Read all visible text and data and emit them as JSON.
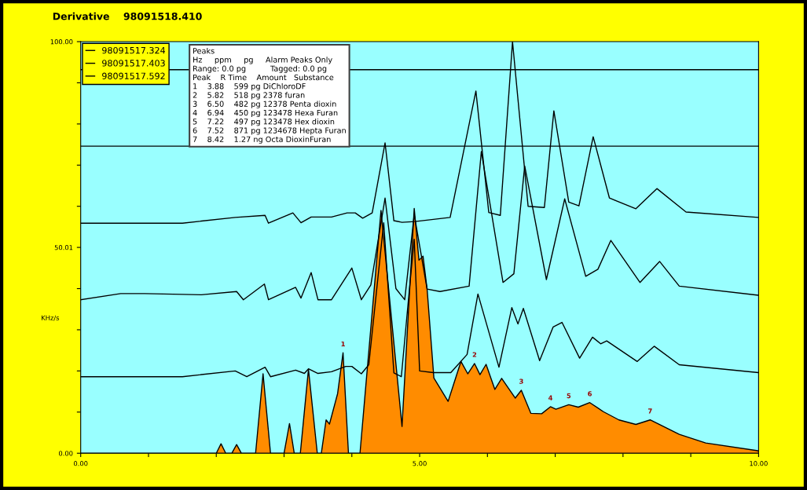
{
  "chart_data": {
    "type": "line",
    "title": "Derivative    98091518.410",
    "ylabel": "KHz/s",
    "xlim": [
      0,
      10
    ],
    "ylim": [
      0,
      100
    ],
    "xticks": [
      {
        "value": 0,
        "label": "0.00"
      },
      {
        "value": 1,
        "label": null
      },
      {
        "value": 2,
        "label": null
      },
      {
        "value": 3,
        "label": null
      },
      {
        "value": 4,
        "label": null
      },
      {
        "value": 5,
        "label": "5.00"
      },
      {
        "value": 6,
        "label": null
      },
      {
        "value": 7,
        "label": null
      },
      {
        "value": 8,
        "label": null
      },
      {
        "value": 9,
        "label": null
      },
      {
        "value": 10,
        "label": "10.00"
      }
    ],
    "yticks": [
      {
        "value": 0,
        "label": "0.00"
      },
      {
        "value": 10,
        "label": null
      },
      {
        "value": 20,
        "label": null
      },
      {
        "value": 30,
        "label": null
      },
      {
        "value": 40,
        "label": null
      },
      {
        "value": 50.01,
        "label": "50.01"
      },
      {
        "value": 60,
        "label": null
      },
      {
        "value": 70,
        "label": null
      },
      {
        "value": 80,
        "label": null
      },
      {
        "value": 90,
        "label": null
      },
      {
        "value": 100,
        "label": "100.00"
      }
    ],
    "grid": false,
    "legend": "top left",
    "series": [
      {
        "type": "area",
        "color": "#ff8c00",
        "x": [
          0,
          2.0,
          2.07,
          2.14,
          2.23,
          2.3,
          2.37,
          2.58,
          2.69,
          2.8,
          3.0,
          3.08,
          3.15,
          3.24,
          3.36,
          3.49,
          3.55,
          3.62,
          3.67,
          3.79,
          3.87,
          3.95,
          4.12,
          4.43,
          4.74,
          4.92,
          4.99,
          5.05,
          5.11,
          5.21,
          5.42,
          5.61,
          5.71,
          5.81,
          5.89,
          5.98,
          6.11,
          6.21,
          6.41,
          6.5,
          6.64,
          6.8,
          6.93,
          7.01,
          7.2,
          7.34,
          7.51,
          7.71,
          7.94,
          8.19,
          8.4,
          8.83,
          9.22,
          9.99,
          10
        ],
        "values": [
          0,
          0,
          2.3,
          0,
          0,
          2.1,
          0,
          0,
          19.3,
          0,
          0,
          7.2,
          0,
          0,
          20.4,
          0,
          0,
          8.1,
          7.1,
          14.5,
          24.4,
          0,
          0,
          59.0,
          6.5,
          59.5,
          46.9,
          47.9,
          39.9,
          18.3,
          12.6,
          22.3,
          19.3,
          21.8,
          19.1,
          21.6,
          15.5,
          18.2,
          13.4,
          15.3,
          9.7,
          9.6,
          11.3,
          10.7,
          11.8,
          11.2,
          12.3,
          10.1,
          8.1,
          7.0,
          8.1,
          4.6,
          2.5,
          0.6,
          0.5
        ]
      },
      {
        "name": "98091517.324",
        "color": "#000000",
        "x": [
          0,
          1.5,
          2.28,
          2.45,
          2.72,
          2.8,
          3.17,
          3.3,
          3.36,
          3.5,
          3.7,
          3.91,
          4.0,
          4.14,
          4.25,
          4.47,
          4.62,
          4.73,
          4.85,
          4.92,
          5.0,
          5.2,
          5.46,
          5.7,
          5.86,
          6.17,
          6.36,
          6.45,
          6.53,
          6.77,
          6.97,
          7.1,
          7.36,
          7.55,
          7.67,
          7.76,
          8.21,
          8.46,
          8.83,
          9.99
        ],
        "values": [
          18.6,
          18.6,
          20.0,
          18.6,
          20.9,
          18.6,
          20.2,
          19.4,
          20.5,
          19.4,
          19.8,
          21.1,
          21.1,
          19.3,
          21.5,
          56.0,
          19.5,
          18.6,
          40.0,
          52.0,
          20.0,
          19.6,
          19.6,
          24.0,
          38.7,
          20.9,
          35.4,
          31.4,
          35.2,
          22.5,
          30.7,
          31.8,
          23.1,
          28.2,
          26.6,
          27.3,
          22.3,
          26.0,
          21.5,
          19.6
        ]
      },
      {
        "name": "98091517.403",
        "color": "#000000",
        "x": [
          0,
          0.59,
          0.94,
          1.78,
          2.3,
          2.4,
          2.71,
          2.77,
          3.17,
          3.25,
          3.4,
          3.5,
          3.7,
          4.0,
          4.14,
          4.28,
          4.49,
          4.65,
          4.78,
          4.92,
          5.11,
          5.3,
          5.73,
          5.91,
          6.23,
          6.39,
          6.55,
          6.87,
          7.14,
          7.45,
          7.63,
          7.82,
          8.25,
          8.54,
          8.83,
          9.99
        ],
        "values": [
          37.3,
          38.8,
          38.8,
          38.5,
          39.3,
          37.3,
          41.1,
          37.3,
          40.3,
          37.7,
          43.9,
          37.3,
          37.3,
          45.0,
          37.3,
          40.9,
          62.0,
          40.0,
          37.3,
          58.0,
          39.9,
          39.3,
          40.6,
          73.3,
          41.5,
          43.6,
          69.8,
          42.2,
          61.8,
          43.0,
          44.7,
          51.7,
          41.5,
          46.6,
          40.6,
          38.4
        ]
      },
      {
        "name": "98091517.592",
        "color": "#000000",
        "x": [
          0,
          1.5,
          2.28,
          2.72,
          2.77,
          3.13,
          3.25,
          3.4,
          3.7,
          3.93,
          4.05,
          4.16,
          4.3,
          4.49,
          4.62,
          4.74,
          4.93,
          5.45,
          5.83,
          6.02,
          6.19,
          6.37,
          6.6,
          6.84,
          6.98,
          7.2,
          7.35,
          7.56,
          7.8,
          8.19,
          8.5,
          8.93,
          9.99
        ],
        "values": [
          55.9,
          55.9,
          57.3,
          57.8,
          55.9,
          58.4,
          56.0,
          57.4,
          57.4,
          58.4,
          58.4,
          57.1,
          58.4,
          75.4,
          56.5,
          56.1,
          56.3,
          57.3,
          88.0,
          58.5,
          57.8,
          100,
          60.0,
          59.7,
          83.2,
          61.0,
          60.1,
          76.9,
          62.0,
          59.4,
          64.3,
          58.6,
          57.3
        ]
      }
    ],
    "ref_lines": [
      {
        "axis": "y",
        "value": 74.6,
        "color": "#000000"
      },
      {
        "axis": "y",
        "value": 93.2,
        "color": "#000000"
      }
    ],
    "annotations": [
      {
        "text": "1",
        "x": 3.87,
        "y": 24.4
      },
      {
        "text": "2",
        "x": 5.81,
        "y": 21.8
      },
      {
        "text": "3",
        "x": 6.5,
        "y": 15.3
      },
      {
        "text": "4",
        "x": 6.93,
        "y": 11.3
      },
      {
        "text": "5",
        "x": 7.2,
        "y": 11.8
      },
      {
        "text": "6",
        "x": 7.51,
        "y": 12.3
      },
      {
        "text": "7",
        "x": 8.4,
        "y": 8.1
      },
      "Peaks",
      "Hz     ppm     pg     Alarm Peaks Only",
      "Range: 0.0 pg          Tagged: 0.0 pg",
      "Peak    R Time    Amount   Substance",
      "1    3.88    599 pg DiChloroDF",
      "2    5.82    518 pg 2378 furan",
      "3    6.50    482 pg 12378 Penta dioxin",
      "4    6.94    450 pg 123478 Hexa Furan",
      "5    7.22    497 pg 123478 Hex dioxin",
      "6    7.52    871 pg 1234678 Hepta Furan",
      "7    8.42    1.27 ng Octa DioxinFuran"
    ]
  }
}
